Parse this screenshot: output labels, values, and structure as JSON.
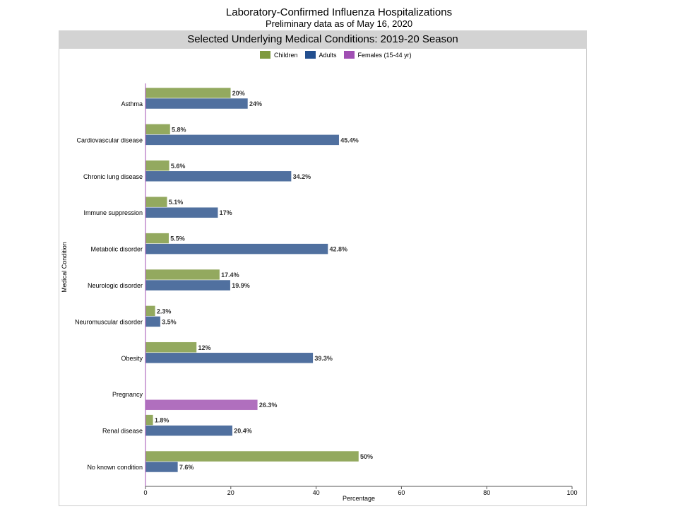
{
  "chart_data": {
    "type": "bar",
    "orientation": "horizontal",
    "title": "Laboratory-Confirmed Influenza Hospitalizations",
    "subtitle": "Preliminary data as of May 16, 2020",
    "panel_title": "Selected Underlying Medical Conditions: 2019-20 Season",
    "xlabel": "Percentage",
    "ylabel": "Medical Condition",
    "xlim": [
      0,
      100
    ],
    "xticks": [
      0,
      20,
      40,
      60,
      80,
      100
    ],
    "grid": false,
    "legend_position": "top",
    "categories": [
      "Asthma",
      "Cardiovascular disease",
      "Chronic lung disease",
      "Immune suppression",
      "Metabolic disorder",
      "Neurologic disorder",
      "Neuromuscular disorder",
      "Obesity",
      "Pregnancy",
      "Renal disease",
      "No known condition"
    ],
    "series": [
      {
        "name": "Children",
        "color": "#93a95f",
        "values": [
          20,
          5.8,
          5.6,
          5.1,
          5.5,
          17.4,
          2.3,
          12,
          null,
          1.8,
          50
        ],
        "labels": [
          "20%",
          "5.8%",
          "5.6%",
          "5.1%",
          "5.5%",
          "17.4%",
          "2.3%",
          "12%",
          "",
          "1.8%",
          "50%"
        ]
      },
      {
        "name": "Adults",
        "color": "#50709f",
        "values": [
          24,
          45.4,
          34.2,
          17,
          42.8,
          19.9,
          3.5,
          39.3,
          null,
          20.4,
          7.6
        ],
        "labels": [
          "24%",
          "45.4%",
          "34.2%",
          "17%",
          "42.8%",
          "19.9%",
          "3.5%",
          "39.3%",
          "",
          "20.4%",
          "7.6%"
        ]
      },
      {
        "name": "Females (15-44 yr)",
        "color": "#b06fbe",
        "values": [
          null,
          null,
          null,
          null,
          null,
          null,
          null,
          null,
          26.3,
          null,
          null
        ],
        "labels": [
          "",
          "",
          "",
          "",
          "",
          "",
          "",
          "",
          "26.3%",
          "",
          ""
        ]
      }
    ]
  }
}
